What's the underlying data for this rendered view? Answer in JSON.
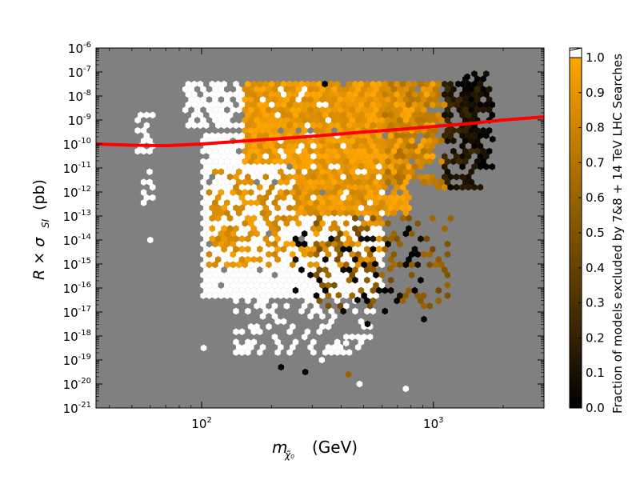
{
  "chart_data": {
    "type": "heatmap",
    "subtype": "hexbin scatter with log axes and reference limit curve",
    "xlabel": {
      "symbol": "m",
      "subscript": "χ̃₀",
      "unit": "(GeV)"
    },
    "ylabel": {
      "symbol": "R × σ",
      "subscript": "SI",
      "unit": "(pb)"
    },
    "x_scale": "log",
    "y_scale": "log",
    "xlim": [
      35,
      3000
    ],
    "ylim": [
      1e-21,
      1e-06
    ],
    "x_ticks": [
      {
        "base": "10",
        "exp": "2",
        "value": 100
      },
      {
        "base": "10",
        "exp": "3",
        "value": 1000
      }
    ],
    "y_ticks": [
      {
        "base": "10",
        "exp": "-6",
        "value": -6
      },
      {
        "base": "10",
        "exp": "-7",
        "value": -7
      },
      {
        "base": "10",
        "exp": "-8",
        "value": -8
      },
      {
        "base": "10",
        "exp": "-9",
        "value": -9
      },
      {
        "base": "10",
        "exp": "-10",
        "value": -10
      },
      {
        "base": "10",
        "exp": "-11",
        "value": -11
      },
      {
        "base": "10",
        "exp": "-12",
        "value": -12
      },
      {
        "base": "10",
        "exp": "-13",
        "value": -13
      },
      {
        "base": "10",
        "exp": "-14",
        "value": -14
      },
      {
        "base": "10",
        "exp": "-15",
        "value": -15
      },
      {
        "base": "10",
        "exp": "-16",
        "value": -16
      },
      {
        "base": "10",
        "exp": "-17",
        "value": -17
      },
      {
        "base": "10",
        "exp": "-18",
        "value": -18
      },
      {
        "base": "10",
        "exp": "-19",
        "value": -19
      },
      {
        "base": "10",
        "exp": "-20",
        "value": -20
      },
      {
        "base": "10",
        "exp": "-21",
        "value": -21
      }
    ],
    "background_color": "#808080",
    "colorbar": {
      "label": "Fraction of models excluded by 7&8 + 14 TeV LHC Searches",
      "range": [
        0.0,
        1.0
      ],
      "ticks": [
        "0.0",
        "0.1",
        "0.2",
        "0.3",
        "0.4",
        "0.5",
        "0.6",
        "0.7",
        "0.8",
        "0.9",
        "1.0"
      ],
      "colors": [
        "#000000",
        "#ffa500"
      ],
      "overflow_color": "#ffffff"
    },
    "limit_curve": {
      "color": "#ff0000",
      "points": [
        [
          35,
          -10.0
        ],
        [
          50,
          -10.05
        ],
        [
          70,
          -10.07
        ],
        [
          100,
          -10.0
        ],
        [
          150,
          -9.88
        ],
        [
          200,
          -9.8
        ],
        [
          300,
          -9.68
        ],
        [
          500,
          -9.5
        ],
        [
          700,
          -9.4
        ],
        [
          1000,
          -9.27
        ],
        [
          1500,
          -9.13
        ],
        [
          2000,
          -9.0
        ],
        [
          3000,
          -8.87
        ]
      ]
    },
    "hex_regions": [
      {
        "x": [
          85,
          650
        ],
        "y": [
          -9.4,
          -7.3
        ],
        "value": 1.05,
        "density": 0.75
      },
      {
        "x": [
          100,
          600
        ],
        "y": [
          -16.5,
          -9.5
        ],
        "value": 1.05,
        "density": 0.95
      },
      {
        "x": [
          140,
          550
        ],
        "y": [
          -18.8,
          -16.5
        ],
        "value": 1.05,
        "density": 0.35
      },
      {
        "x": [
          150,
          1000
        ],
        "y": [
          -10.8,
          -7.5
        ],
        "value": 0.93,
        "density": 0.9
      },
      {
        "x": [
          250,
          800
        ],
        "y": [
          -13.0,
          -10.8
        ],
        "value": 0.93,
        "density": 0.85
      },
      {
        "x": [
          105,
          600
        ],
        "y": [
          -15.2,
          -11.0
        ],
        "value": 0.88,
        "density": 0.45
      },
      {
        "x": [
          600,
          1200
        ],
        "y": [
          -12.0,
          -7.3
        ],
        "value": 0.78,
        "density": 0.55
      },
      {
        "x": [
          1100,
          1600
        ],
        "y": [
          -12.0,
          -7.3
        ],
        "value": 0.15,
        "density": 0.6
      },
      {
        "x": [
          1300,
          1800
        ],
        "y": [
          -11.0,
          -7.0
        ],
        "value": 0.05,
        "density": 0.5
      },
      {
        "x": [
          300,
          1200
        ],
        "y": [
          -16.8,
          -13.0
        ],
        "value": 0.55,
        "density": 0.25
      },
      {
        "x": [
          250,
          900
        ],
        "y": [
          -17.0,
          -13.5
        ],
        "value": 0.0,
        "density": 0.12
      },
      {
        "x": [
          52,
          62
        ],
        "y": [
          -10.4,
          -8.4
        ],
        "value": 1.05,
        "density": 0.5
      },
      {
        "x": [
          56,
          62
        ],
        "y": [
          -12.6,
          -10.8
        ],
        "value": 1.05,
        "density": 0.5
      }
    ],
    "hex_singletons": [
      [
        60,
        -14.0,
        1.05
      ],
      [
        102,
        -18.5,
        1.05
      ],
      [
        220,
        -19.3,
        0.0
      ],
      [
        280,
        -19.5,
        0.0
      ],
      [
        330,
        -19.0,
        1.05
      ],
      [
        420,
        -18.3,
        1.05
      ],
      [
        430,
        -19.6,
        0.6
      ],
      [
        480,
        -20.0,
        1.05
      ],
      [
        760,
        -20.2,
        1.05
      ],
      [
        1280,
        -7.5,
        0.0
      ],
      [
        1400,
        -7.2,
        0.0
      ],
      [
        1800,
        -9.8,
        0.0
      ],
      [
        1600,
        -10.9,
        0.0
      ],
      [
        340,
        -7.5,
        0.0
      ],
      [
        520,
        -17.5,
        0.0
      ],
      [
        470,
        -16.5,
        0.0
      ],
      [
        910,
        -17.3,
        0.0
      ],
      [
        390,
        -16.3,
        0.6
      ],
      [
        650,
        -15.2,
        0.6
      ],
      [
        560,
        -15.0,
        0.0
      ]
    ]
  }
}
